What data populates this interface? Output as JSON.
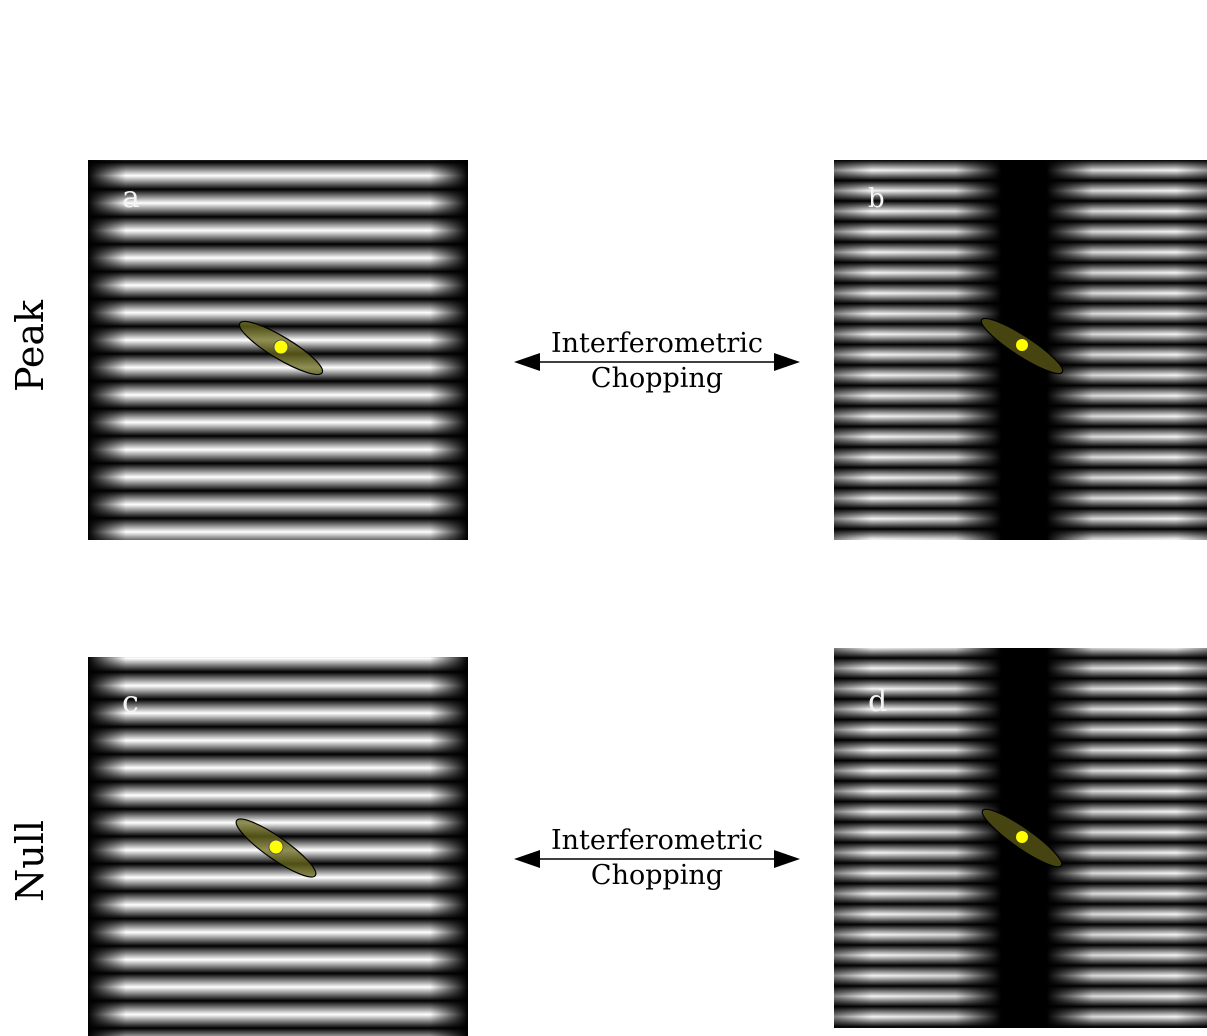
{
  "rows": {
    "peak": "Peak",
    "null": "Null"
  },
  "panels": {
    "a": "a",
    "b": "b",
    "c": "c",
    "d": "d"
  },
  "chopping": {
    "line1": "Interferometric",
    "line2": "Chopping"
  },
  "colors": {
    "fringe": "#ffffff",
    "background": "#000000",
    "source": "#ffff00",
    "ellipse_fill": "#6b6a1c"
  }
}
